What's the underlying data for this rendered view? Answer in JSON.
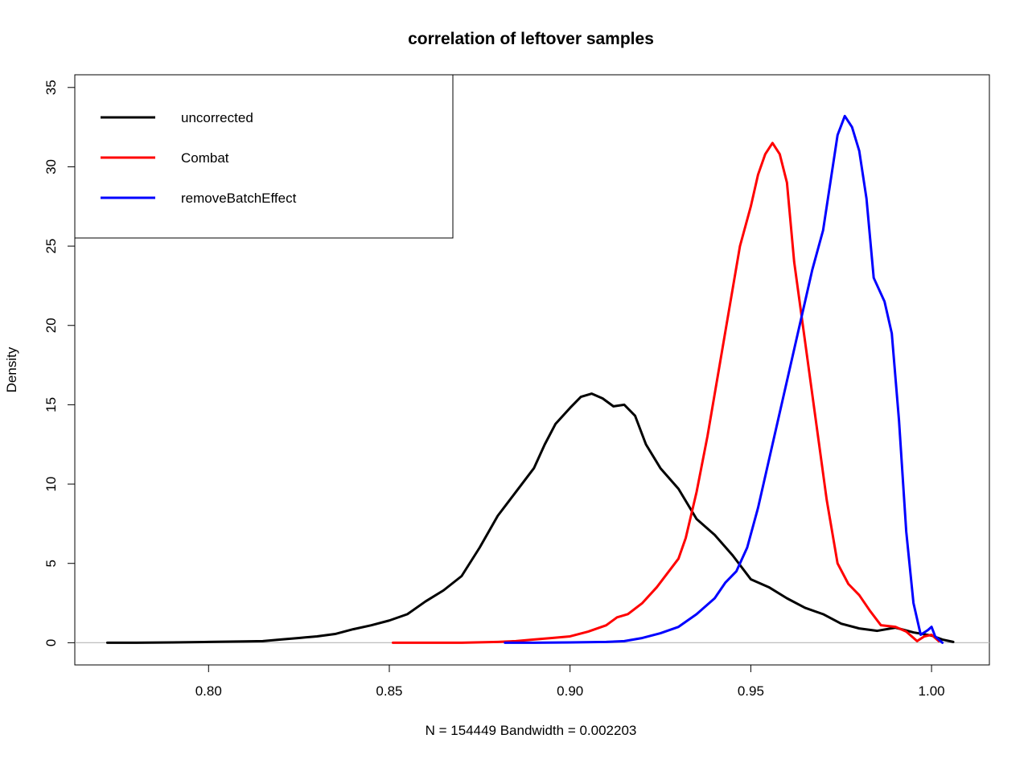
{
  "chart_data": {
    "type": "line",
    "title": "correlation of leftover samples",
    "xlabel": "N = 154449   Bandwidth = 0.002203",
    "ylabel": "Density",
    "xlim": [
      0.763,
      1.016
    ],
    "ylim": [
      -1.4,
      35.8
    ],
    "x_ticks": [
      0.8,
      0.85,
      0.9,
      0.95,
      1.0
    ],
    "x_tick_labels": [
      "0.80",
      "0.85",
      "0.90",
      "0.95",
      "1.00"
    ],
    "y_ticks": [
      0,
      5,
      10,
      15,
      20,
      25,
      30,
      35
    ],
    "y_tick_labels": [
      "0",
      "5",
      "10",
      "15",
      "20",
      "25",
      "30",
      "35"
    ],
    "baseline": 0,
    "baseline_color": "#bebebe",
    "legend": {
      "position": "top-left",
      "box": true
    },
    "series": [
      {
        "name": "uncorrected",
        "color": "#000000",
        "points": [
          [
            0.772,
            0.0
          ],
          [
            0.78,
            0.0
          ],
          [
            0.79,
            0.02
          ],
          [
            0.8,
            0.05
          ],
          [
            0.81,
            0.08
          ],
          [
            0.815,
            0.1
          ],
          [
            0.82,
            0.2
          ],
          [
            0.825,
            0.3
          ],
          [
            0.83,
            0.4
          ],
          [
            0.835,
            0.55
          ],
          [
            0.84,
            0.85
          ],
          [
            0.845,
            1.1
          ],
          [
            0.85,
            1.4
          ],
          [
            0.855,
            1.8
          ],
          [
            0.86,
            2.6
          ],
          [
            0.865,
            3.3
          ],
          [
            0.87,
            4.2
          ],
          [
            0.875,
            6.0
          ],
          [
            0.88,
            8.0
          ],
          [
            0.885,
            9.5
          ],
          [
            0.89,
            11.0
          ],
          [
            0.893,
            12.5
          ],
          [
            0.896,
            13.8
          ],
          [
            0.9,
            14.8
          ],
          [
            0.903,
            15.5
          ],
          [
            0.906,
            15.7
          ],
          [
            0.909,
            15.4
          ],
          [
            0.912,
            14.9
          ],
          [
            0.915,
            15.0
          ],
          [
            0.918,
            14.3
          ],
          [
            0.921,
            12.5
          ],
          [
            0.925,
            11.0
          ],
          [
            0.93,
            9.7
          ],
          [
            0.935,
            7.8
          ],
          [
            0.94,
            6.8
          ],
          [
            0.945,
            5.5
          ],
          [
            0.95,
            4.0
          ],
          [
            0.955,
            3.5
          ],
          [
            0.96,
            2.8
          ],
          [
            0.965,
            2.2
          ],
          [
            0.97,
            1.8
          ],
          [
            0.975,
            1.2
          ],
          [
            0.98,
            0.9
          ],
          [
            0.985,
            0.75
          ],
          [
            0.99,
            0.95
          ],
          [
            0.995,
            0.65
          ],
          [
            1.0,
            0.45
          ],
          [
            1.003,
            0.2
          ],
          [
            1.006,
            0.05
          ]
        ]
      },
      {
        "name": "Combat",
        "color": "#ff0000",
        "points": [
          [
            0.851,
            0.0
          ],
          [
            0.86,
            0.0
          ],
          [
            0.87,
            0.0
          ],
          [
            0.88,
            0.05
          ],
          [
            0.885,
            0.1
          ],
          [
            0.89,
            0.2
          ],
          [
            0.895,
            0.3
          ],
          [
            0.9,
            0.4
          ],
          [
            0.905,
            0.7
          ],
          [
            0.91,
            1.1
          ],
          [
            0.913,
            1.6
          ],
          [
            0.916,
            1.8
          ],
          [
            0.92,
            2.5
          ],
          [
            0.924,
            3.5
          ],
          [
            0.927,
            4.4
          ],
          [
            0.93,
            5.3
          ],
          [
            0.932,
            6.6
          ],
          [
            0.935,
            9.5
          ],
          [
            0.938,
            13.0
          ],
          [
            0.941,
            17.0
          ],
          [
            0.944,
            21.0
          ],
          [
            0.947,
            25.0
          ],
          [
            0.95,
            27.5
          ],
          [
            0.952,
            29.5
          ],
          [
            0.954,
            30.8
          ],
          [
            0.956,
            31.5
          ],
          [
            0.958,
            30.8
          ],
          [
            0.96,
            29.0
          ],
          [
            0.962,
            24.0
          ],
          [
            0.965,
            19.0
          ],
          [
            0.968,
            14.0
          ],
          [
            0.971,
            9.0
          ],
          [
            0.974,
            5.0
          ],
          [
            0.977,
            3.7
          ],
          [
            0.98,
            3.0
          ],
          [
            0.983,
            2.0
          ],
          [
            0.986,
            1.1
          ],
          [
            0.99,
            1.0
          ],
          [
            0.993,
            0.7
          ],
          [
            0.996,
            0.1
          ],
          [
            0.998,
            0.4
          ],
          [
            1.0,
            0.5
          ],
          [
            1.002,
            0.1
          ]
        ]
      },
      {
        "name": "removeBatchEffect",
        "color": "#0000ff",
        "points": [
          [
            0.882,
            0.0
          ],
          [
            0.89,
            0.0
          ],
          [
            0.9,
            0.02
          ],
          [
            0.91,
            0.05
          ],
          [
            0.915,
            0.1
          ],
          [
            0.92,
            0.3
          ],
          [
            0.925,
            0.6
          ],
          [
            0.93,
            1.0
          ],
          [
            0.935,
            1.8
          ],
          [
            0.94,
            2.8
          ],
          [
            0.943,
            3.8
          ],
          [
            0.946,
            4.5
          ],
          [
            0.949,
            6.0
          ],
          [
            0.952,
            8.5
          ],
          [
            0.955,
            11.5
          ],
          [
            0.958,
            14.5
          ],
          [
            0.961,
            17.5
          ],
          [
            0.964,
            20.5
          ],
          [
            0.967,
            23.5
          ],
          [
            0.97,
            26.0
          ],
          [
            0.972,
            29.0
          ],
          [
            0.974,
            32.0
          ],
          [
            0.976,
            33.2
          ],
          [
            0.978,
            32.5
          ],
          [
            0.98,
            31.0
          ],
          [
            0.982,
            28.0
          ],
          [
            0.984,
            23.0
          ],
          [
            0.987,
            21.5
          ],
          [
            0.989,
            19.5
          ],
          [
            0.991,
            14.0
          ],
          [
            0.993,
            7.0
          ],
          [
            0.995,
            2.5
          ],
          [
            0.997,
            0.5
          ],
          [
            0.999,
            0.8
          ],
          [
            1.0,
            1.0
          ],
          [
            1.001,
            0.4
          ],
          [
            1.003,
            0.0
          ]
        ]
      }
    ]
  }
}
